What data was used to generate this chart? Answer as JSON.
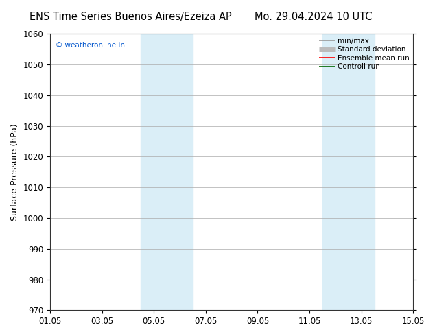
{
  "title_left": "ENS Time Series Buenos Aires/Ezeiza AP",
  "title_right": "Mo. 29.04.2024 10 UTC",
  "ylabel": "Surface Pressure (hPa)",
  "ylim": [
    970,
    1060
  ],
  "yticks": [
    970,
    980,
    990,
    1000,
    1010,
    1020,
    1030,
    1040,
    1050,
    1060
  ],
  "xlim": [
    0,
    14
  ],
  "xtick_positions": [
    0,
    2,
    4,
    6,
    8,
    10,
    12,
    14
  ],
  "xtick_labels": [
    "01.05",
    "03.05",
    "05.05",
    "07.05",
    "09.05",
    "11.05",
    "13.05",
    "15.05"
  ],
  "shaded_bands": [
    {
      "xmin": 3.5,
      "xmax": 5.5
    },
    {
      "xmin": 10.5,
      "xmax": 12.5
    }
  ],
  "shade_color": "#daeef7",
  "background_color": "#ffffff",
  "watermark_text": "© weatheronline.in",
  "watermark_color": "#0055cc",
  "legend_entries": [
    {
      "label": "min/max",
      "color": "#999999",
      "lw": 1.2
    },
    {
      "label": "Standard deviation",
      "color": "#bbbbbb",
      "lw": 5
    },
    {
      "label": "Ensemble mean run",
      "color": "#ff0000",
      "lw": 1.2
    },
    {
      "label": "Controll run",
      "color": "#006600",
      "lw": 1.2
    }
  ],
  "grid_color": "#aaaaaa",
  "tick_fontsize": 8.5,
  "label_fontsize": 9,
  "title_fontsize": 10.5
}
